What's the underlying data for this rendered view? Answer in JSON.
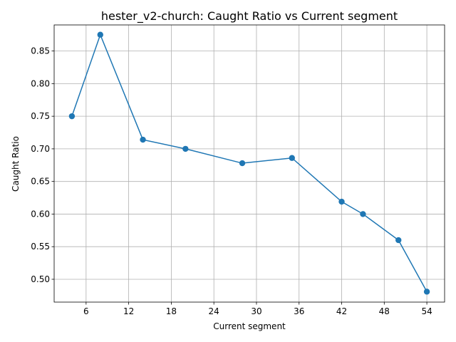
{
  "chart_data": {
    "type": "line",
    "title": "hester_v2-church: Caught Ratio vs Current segment",
    "xlabel": "Current segment",
    "ylabel": "Caught Ratio",
    "xlim": [
      1.5,
      56.5
    ],
    "ylim": [
      0.465,
      0.89
    ],
    "xticks": [
      6,
      12,
      18,
      24,
      30,
      36,
      42,
      48,
      54
    ],
    "yticks": [
      0.5,
      0.55,
      0.6,
      0.65,
      0.7,
      0.75,
      0.8,
      0.85
    ],
    "xtick_labels": [
      "6",
      "12",
      "18",
      "24",
      "30",
      "36",
      "42",
      "48",
      "54"
    ],
    "ytick_labels": [
      "0.50",
      "0.55",
      "0.60",
      "0.65",
      "0.70",
      "0.75",
      "0.80",
      "0.85"
    ],
    "grid": true,
    "line_color": "#1f77b4",
    "marker": "circle",
    "x": [
      4,
      8,
      14,
      20,
      28,
      35,
      42,
      45,
      50,
      54
    ],
    "y": [
      0.75,
      0.875,
      0.714,
      0.7,
      0.678,
      0.686,
      0.619,
      0.6,
      0.56,
      0.481
    ]
  }
}
